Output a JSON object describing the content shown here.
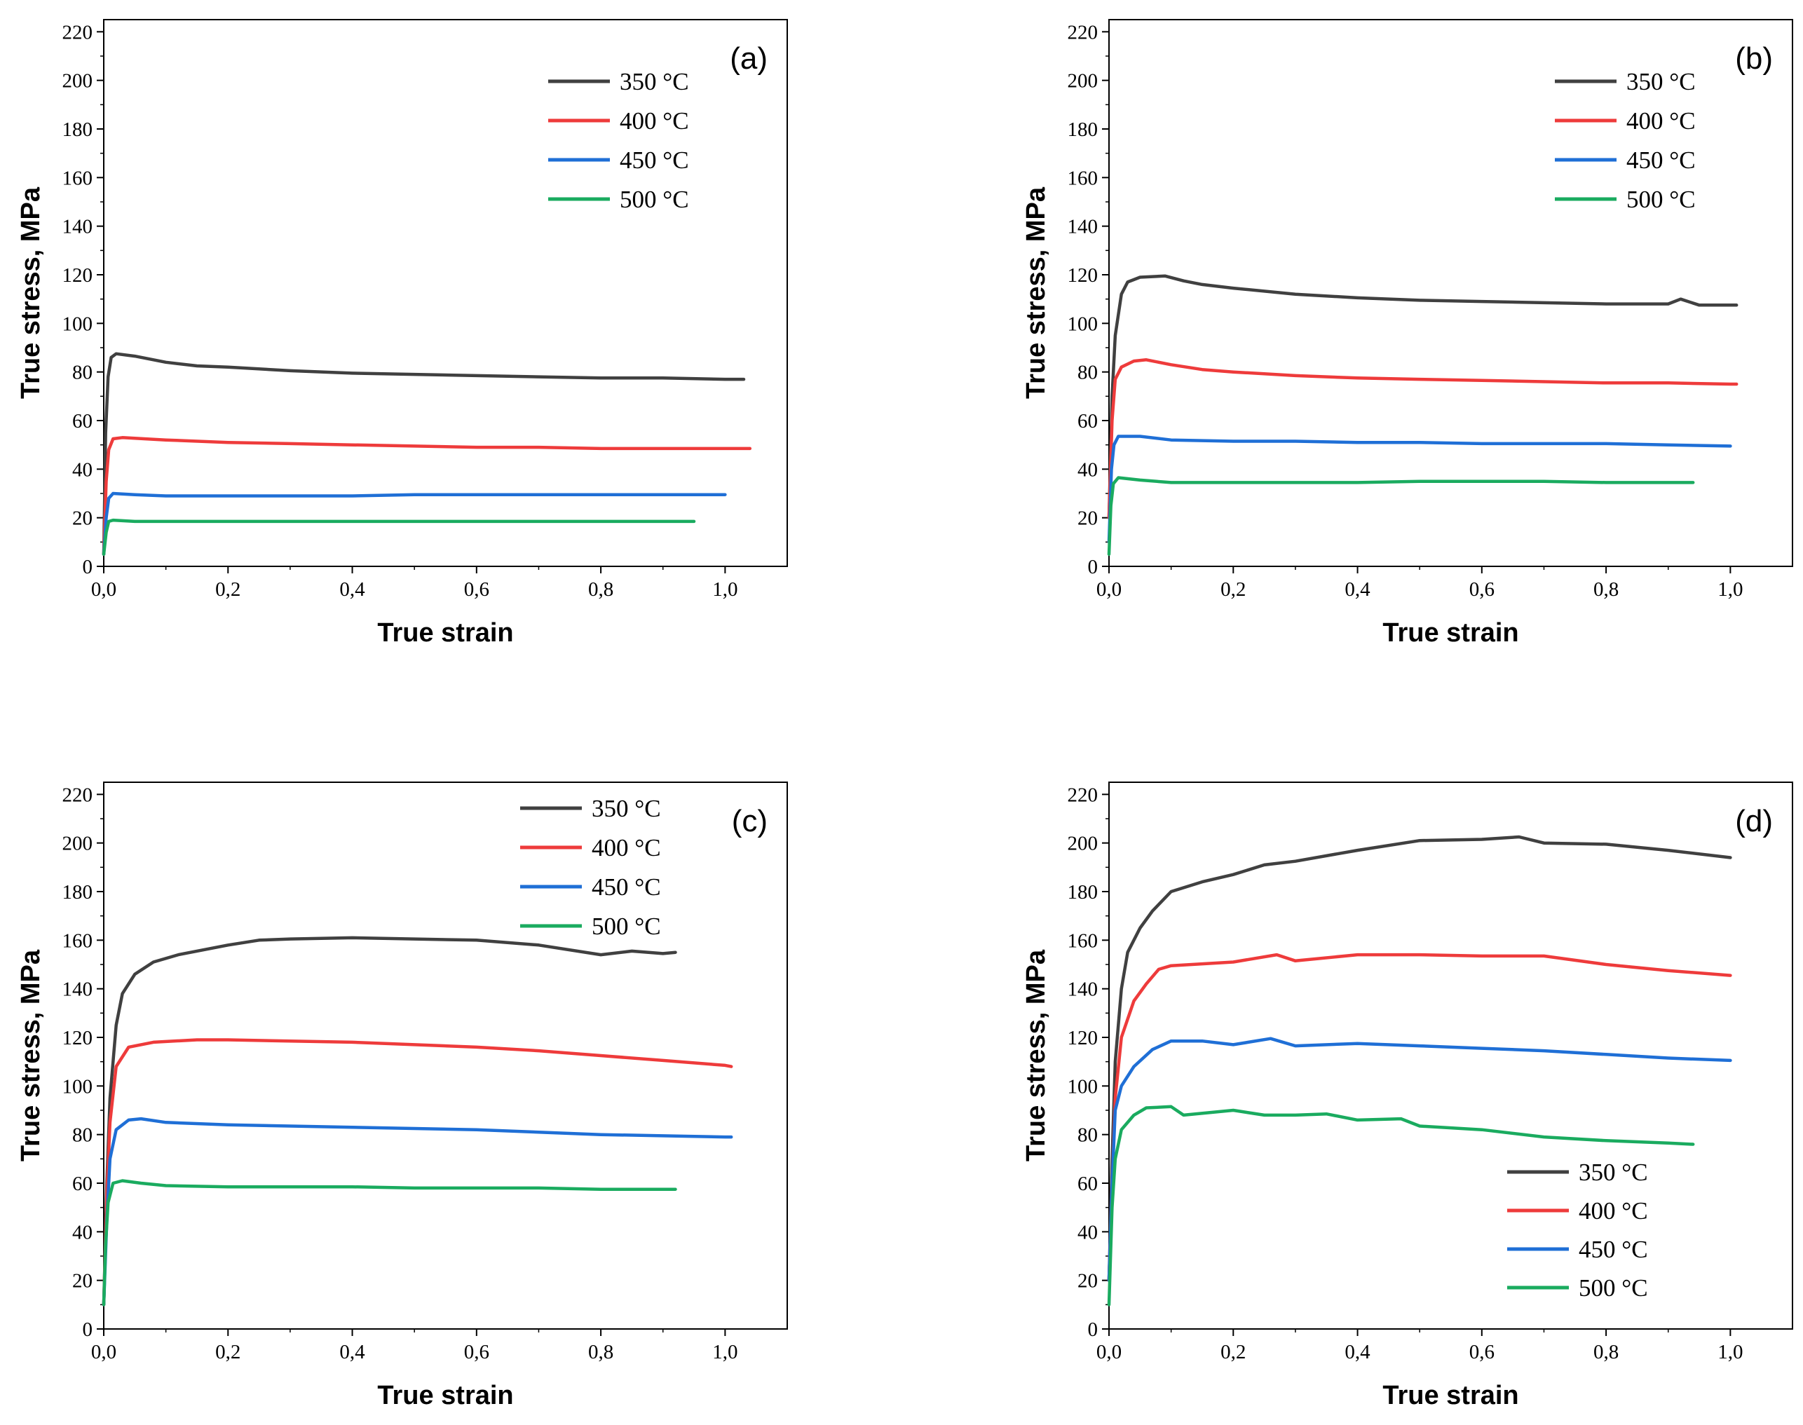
{
  "colors": {
    "350": "#404040",
    "400": "#ee3b3b",
    "450": "#1f6fd6",
    "500": "#1aab5f"
  },
  "chart_data": [
    {
      "type": "line",
      "panel_label": "(a)",
      "xlabel": "True strain",
      "ylabel": "True stress, MPa",
      "xlim": [
        0,
        1.1
      ],
      "ylim": [
        0,
        225
      ],
      "xticks": [
        "0,0",
        "0,2",
        "0,4",
        "0,6",
        "0,8",
        "1,0"
      ],
      "yticks": [
        "0",
        "20",
        "40",
        "60",
        "80",
        "100",
        "120",
        "140",
        "160",
        "180",
        "200",
        "220"
      ],
      "legend_position": "top-right",
      "series": [
        {
          "name": "350 °C",
          "color_key": "350",
          "x": [
            0,
            0.003,
            0.007,
            0.012,
            0.02,
            0.05,
            0.1,
            0.15,
            0.2,
            0.3,
            0.4,
            0.5,
            0.6,
            0.7,
            0.8,
            0.9,
            1.0,
            1.03
          ],
          "y": [
            5,
            55,
            78,
            86,
            87.5,
            86.5,
            84,
            82.5,
            82,
            80.5,
            79.5,
            79,
            78.5,
            78,
            77.5,
            77.5,
            77,
            77
          ]
        },
        {
          "name": "400 °C",
          "color_key": "400",
          "x": [
            0,
            0.004,
            0.008,
            0.015,
            0.03,
            0.1,
            0.2,
            0.3,
            0.4,
            0.5,
            0.6,
            0.7,
            0.8,
            0.9,
            1.0,
            1.04
          ],
          "y": [
            5,
            35,
            48,
            52.5,
            53,
            52,
            51,
            50.5,
            50,
            49.5,
            49,
            49,
            48.5,
            48.5,
            48.5,
            48.5
          ]
        },
        {
          "name": "450 °C",
          "color_key": "450",
          "x": [
            0,
            0.004,
            0.008,
            0.015,
            0.05,
            0.1,
            0.2,
            0.3,
            0.4,
            0.5,
            0.6,
            0.7,
            0.8,
            0.9,
            1.0
          ],
          "y": [
            5,
            20,
            28,
            30,
            29.5,
            29,
            29,
            29,
            29,
            29.5,
            29.5,
            29.5,
            29.5,
            29.5,
            29.5
          ]
        },
        {
          "name": "500 °C",
          "color_key": "500",
          "x": [
            0,
            0.004,
            0.008,
            0.015,
            0.05,
            0.1,
            0.2,
            0.3,
            0.4,
            0.5,
            0.6,
            0.7,
            0.8,
            0.9,
            0.95
          ],
          "y": [
            5,
            14,
            18.5,
            19,
            18.5,
            18.5,
            18.5,
            18.5,
            18.5,
            18.5,
            18.5,
            18.5,
            18.5,
            18.5,
            18.5
          ]
        }
      ]
    },
    {
      "type": "line",
      "panel_label": "(b)",
      "xlabel": "True strain",
      "ylabel": "True stress, MPa",
      "xlim": [
        0,
        1.1
      ],
      "ylim": [
        0,
        225
      ],
      "xticks": [
        "0,0",
        "0,2",
        "0,4",
        "0,6",
        "0,8",
        "1,0"
      ],
      "yticks": [
        "0",
        "20",
        "40",
        "60",
        "80",
        "100",
        "120",
        "140",
        "160",
        "180",
        "200",
        "220"
      ],
      "legend_position": "top-right",
      "series": [
        {
          "name": "350 °C",
          "color_key": "350",
          "x": [
            0,
            0.005,
            0.01,
            0.02,
            0.03,
            0.05,
            0.09,
            0.12,
            0.15,
            0.2,
            0.3,
            0.4,
            0.5,
            0.6,
            0.7,
            0.8,
            0.85,
            0.9,
            0.92,
            0.95,
            1.0,
            1.01
          ],
          "y": [
            20,
            70,
            95,
            112,
            117,
            119,
            119.5,
            117.5,
            116,
            114.5,
            112,
            110.5,
            109.5,
            109,
            108.5,
            108,
            108,
            108,
            110,
            107.5,
            107.5,
            107.5
          ]
        },
        {
          "name": "400 °C",
          "color_key": "400",
          "x": [
            0,
            0.005,
            0.01,
            0.02,
            0.04,
            0.06,
            0.1,
            0.15,
            0.2,
            0.3,
            0.4,
            0.5,
            0.6,
            0.7,
            0.8,
            0.9,
            1.0,
            1.01
          ],
          "y": [
            20,
            60,
            77,
            82,
            84.5,
            85,
            83,
            81,
            80,
            78.5,
            77.5,
            77,
            76.5,
            76,
            75.5,
            75.5,
            75,
            75
          ]
        },
        {
          "name": "450 °C",
          "color_key": "450",
          "x": [
            0,
            0.004,
            0.008,
            0.015,
            0.05,
            0.1,
            0.2,
            0.3,
            0.4,
            0.5,
            0.6,
            0.7,
            0.8,
            0.9,
            1.0
          ],
          "y": [
            10,
            40,
            50,
            53.5,
            53.5,
            52,
            51.5,
            51.5,
            51,
            51,
            50.5,
            50.5,
            50.5,
            50,
            49.5
          ]
        },
        {
          "name": "500 °C",
          "color_key": "500",
          "x": [
            0,
            0.003,
            0.007,
            0.015,
            0.05,
            0.1,
            0.2,
            0.3,
            0.4,
            0.5,
            0.6,
            0.7,
            0.8,
            0.9,
            0.94
          ],
          "y": [
            5,
            25,
            34,
            36.5,
            35.5,
            34.5,
            34.5,
            34.5,
            34.5,
            35,
            35,
            35,
            34.5,
            34.5,
            34.5
          ]
        }
      ]
    },
    {
      "type": "line",
      "panel_label": "(c)",
      "xlabel": "True strain",
      "ylabel": "True stress, MPa",
      "xlim": [
        0,
        1.1
      ],
      "ylim": [
        0,
        225
      ],
      "xticks": [
        "0,0",
        "0,2",
        "0,4",
        "0,6",
        "0,8",
        "1,0"
      ],
      "yticks": [
        "0",
        "20",
        "40",
        "60",
        "80",
        "100",
        "120",
        "140",
        "160",
        "180",
        "200",
        "220"
      ],
      "legend_position": "top-right",
      "series": [
        {
          "name": "350 °C",
          "color_key": "350",
          "x": [
            0,
            0.005,
            0.01,
            0.02,
            0.03,
            0.05,
            0.08,
            0.12,
            0.2,
            0.25,
            0.3,
            0.4,
            0.5,
            0.6,
            0.7,
            0.8,
            0.85,
            0.9,
            0.92
          ],
          "y": [
            10,
            60,
            95,
            125,
            138,
            146,
            151,
            154,
            158,
            160,
            160.5,
            161,
            160.5,
            160,
            158,
            154,
            155.5,
            154.5,
            155
          ]
        },
        {
          "name": "400 °C",
          "color_key": "400",
          "x": [
            0,
            0.005,
            0.01,
            0.02,
            0.04,
            0.08,
            0.15,
            0.2,
            0.3,
            0.4,
            0.5,
            0.6,
            0.7,
            0.8,
            0.9,
            1.0,
            1.01
          ],
          "y": [
            10,
            55,
            85,
            108,
            116,
            118,
            119,
            119,
            118.5,
            118,
            117,
            116,
            114.5,
            112.5,
            110.5,
            108.5,
            108
          ]
        },
        {
          "name": "450 °C",
          "color_key": "450",
          "x": [
            0,
            0.005,
            0.01,
            0.02,
            0.04,
            0.06,
            0.1,
            0.2,
            0.3,
            0.4,
            0.5,
            0.6,
            0.7,
            0.8,
            0.9,
            1.0,
            1.01
          ],
          "y": [
            10,
            45,
            70,
            82,
            86,
            86.5,
            85,
            84,
            83.5,
            83,
            82.5,
            82,
            81,
            80,
            79.5,
            79,
            79
          ]
        },
        {
          "name": "500 °C",
          "color_key": "500",
          "x": [
            0,
            0.003,
            0.007,
            0.015,
            0.03,
            0.06,
            0.1,
            0.2,
            0.3,
            0.4,
            0.5,
            0.6,
            0.7,
            0.8,
            0.9,
            0.92
          ],
          "y": [
            10,
            35,
            52,
            60,
            61,
            60,
            59,
            58.5,
            58.5,
            58.5,
            58,
            58,
            58,
            57.5,
            57.5,
            57.5
          ]
        }
      ]
    },
    {
      "type": "line",
      "panel_label": "(d)",
      "xlabel": "True strain",
      "ylabel": "True stress, MPa",
      "xlim": [
        0,
        1.1
      ],
      "ylim": [
        0,
        225
      ],
      "xticks": [
        "0,0",
        "0,2",
        "0,4",
        "0,6",
        "0,8",
        "1,0"
      ],
      "yticks": [
        "0",
        "20",
        "40",
        "60",
        "80",
        "100",
        "120",
        "140",
        "160",
        "180",
        "200",
        "220"
      ],
      "legend_position": "bottom-right",
      "series": [
        {
          "name": "350 °C",
          "color_key": "350",
          "x": [
            0,
            0.005,
            0.01,
            0.02,
            0.03,
            0.05,
            0.07,
            0.1,
            0.15,
            0.2,
            0.25,
            0.3,
            0.4,
            0.5,
            0.6,
            0.66,
            0.7,
            0.8,
            0.9,
            1.0
          ],
          "y": [
            20,
            70,
            110,
            140,
            155,
            165,
            172,
            180,
            184,
            187,
            191,
            192.5,
            197,
            201,
            201.5,
            202.5,
            200,
            199.5,
            197,
            194
          ]
        },
        {
          "name": "400 °C",
          "color_key": "400",
          "x": [
            0,
            0.005,
            0.01,
            0.02,
            0.04,
            0.06,
            0.08,
            0.1,
            0.2,
            0.27,
            0.3,
            0.4,
            0.5,
            0.6,
            0.7,
            0.8,
            0.9,
            1.0
          ],
          "y": [
            20,
            60,
            95,
            120,
            135,
            142,
            148,
            149.5,
            151,
            154,
            151.5,
            154,
            154,
            153.5,
            153.5,
            150,
            147.5,
            145.5
          ]
        },
        {
          "name": "450 °C",
          "color_key": "450",
          "x": [
            0,
            0.005,
            0.01,
            0.02,
            0.04,
            0.07,
            0.1,
            0.15,
            0.2,
            0.26,
            0.3,
            0.4,
            0.5,
            0.6,
            0.7,
            0.8,
            0.9,
            1.0
          ],
          "y": [
            20,
            60,
            90,
            100,
            108,
            115,
            118.5,
            118.5,
            117,
            119.5,
            116.5,
            117.5,
            116.5,
            115.5,
            114.5,
            113,
            111.5,
            110.5
          ]
        },
        {
          "name": "500 °C",
          "color_key": "500",
          "x": [
            0,
            0.005,
            0.01,
            0.02,
            0.04,
            0.06,
            0.1,
            0.12,
            0.2,
            0.25,
            0.3,
            0.35,
            0.4,
            0.47,
            0.5,
            0.6,
            0.7,
            0.8,
            0.9,
            0.94
          ],
          "y": [
            10,
            50,
            70,
            82,
            88,
            91,
            91.5,
            88,
            90,
            88,
            88,
            88.5,
            86,
            86.5,
            83.5,
            82,
            79,
            77.5,
            76.5,
            76
          ]
        }
      ]
    }
  ]
}
